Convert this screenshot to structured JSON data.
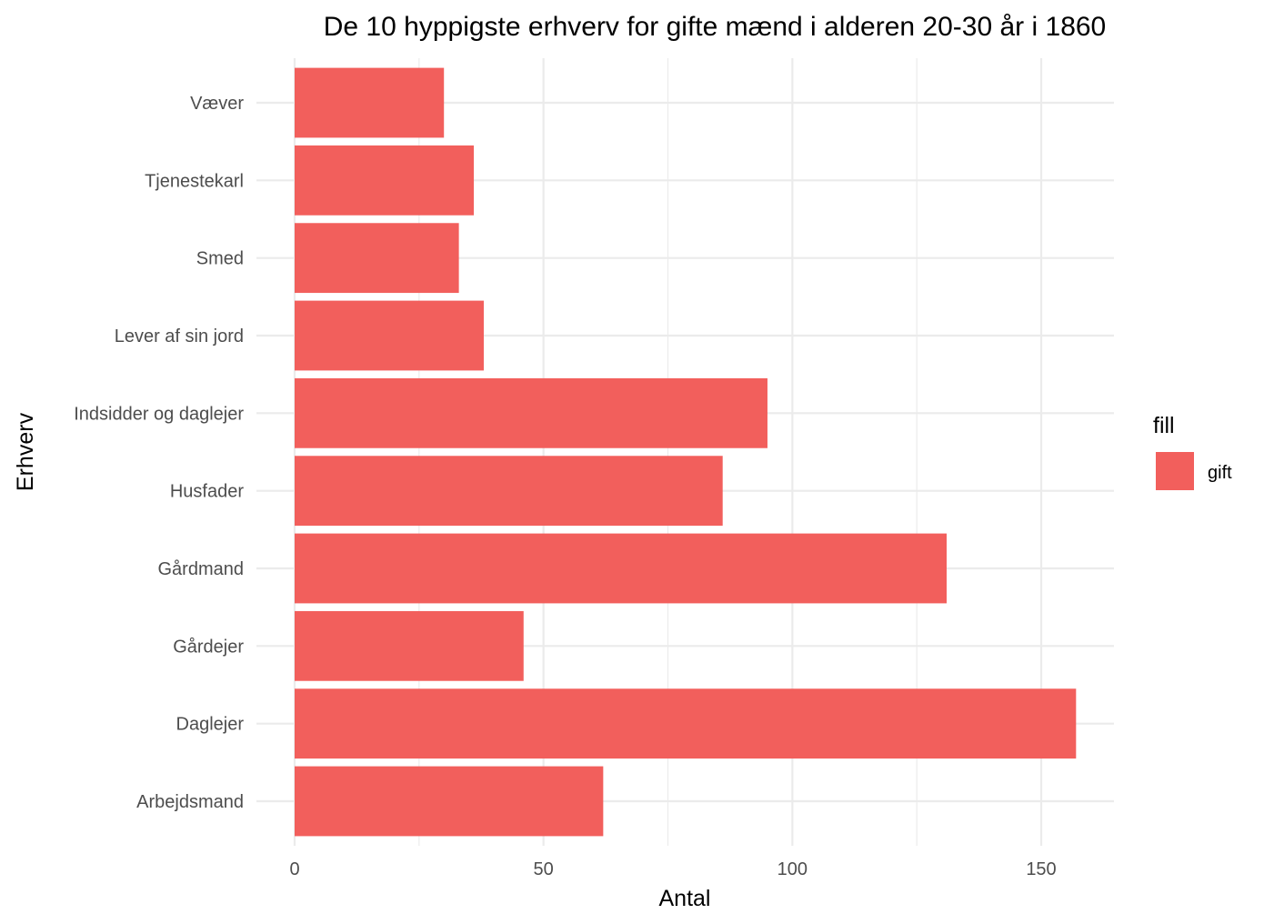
{
  "chart_data": {
    "type": "bar",
    "orientation": "horizontal",
    "title": "De 10 hyppigste erhverv for gifte mænd i alderen 20-30 år i 1860",
    "xlabel": "Antal",
    "ylabel": "Erhverv",
    "categories": [
      "Arbejdsmand",
      "Daglejer",
      "Gårdejer",
      "Gårdmand",
      "Husfader",
      "Indsidder og daglejer",
      "Lever af sin jord",
      "Smed",
      "Tjenestekarl",
      "Væver"
    ],
    "series": [
      {
        "name": "gift",
        "color": "#f25f5c",
        "values": [
          62,
          157,
          46,
          131,
          86,
          95,
          38,
          33,
          36,
          30
        ]
      }
    ],
    "xlim": [
      0,
      165
    ],
    "xticks": [
      0,
      50,
      100,
      150
    ],
    "xtick_labels": [
      "0",
      "50",
      "100",
      "150"
    ],
    "grid": true,
    "legend": {
      "title": "fill",
      "position": "right",
      "items": [
        {
          "label": "gift",
          "color": "#f25f5c"
        }
      ]
    }
  }
}
